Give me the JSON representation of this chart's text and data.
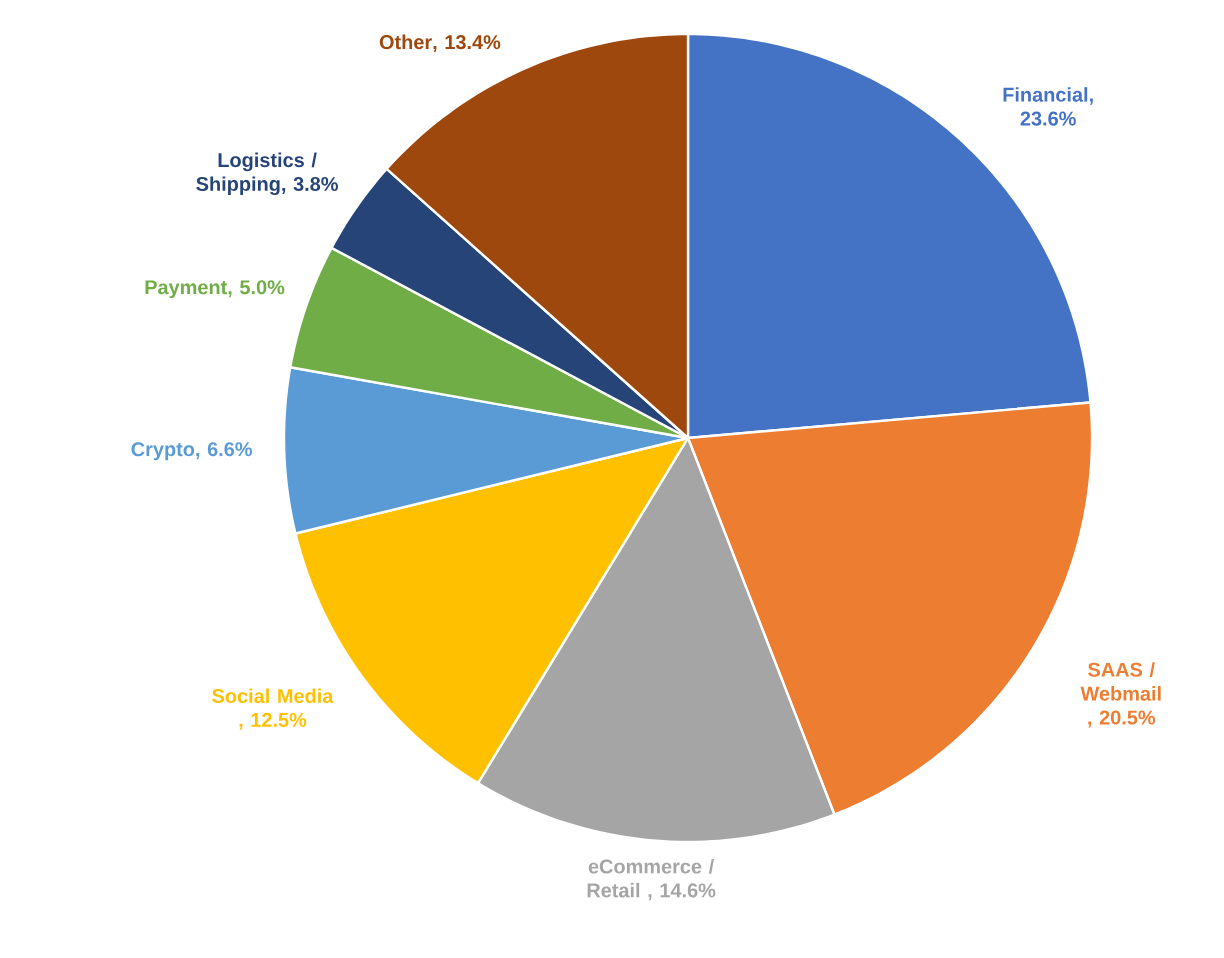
{
  "chart_data": {
    "type": "pie",
    "categories": [
      "Financial",
      "SAAS / Webmail ",
      "eCommerce / Retail ",
      "Social Media ",
      "Crypto",
      "Payment",
      "Logistics / Shipping",
      "Other"
    ],
    "values": [
      23.6,
      20.5,
      14.6,
      12.5,
      6.6,
      5.0,
      3.8,
      13.4
    ],
    "colors": [
      "#4472c4",
      "#ed7d31",
      "#a5a5a5",
      "#ffc000",
      "#5b9bd5",
      "#70ad47",
      "#264478",
      "#9e480e"
    ],
    "value_labels": [
      ", 23.6%",
      ", 20.5%",
      ", 14.6%",
      ", 12.5%",
      ", 6.6%",
      ", 5.0%",
      ", 3.8%",
      ", 13.4%"
    ]
  }
}
